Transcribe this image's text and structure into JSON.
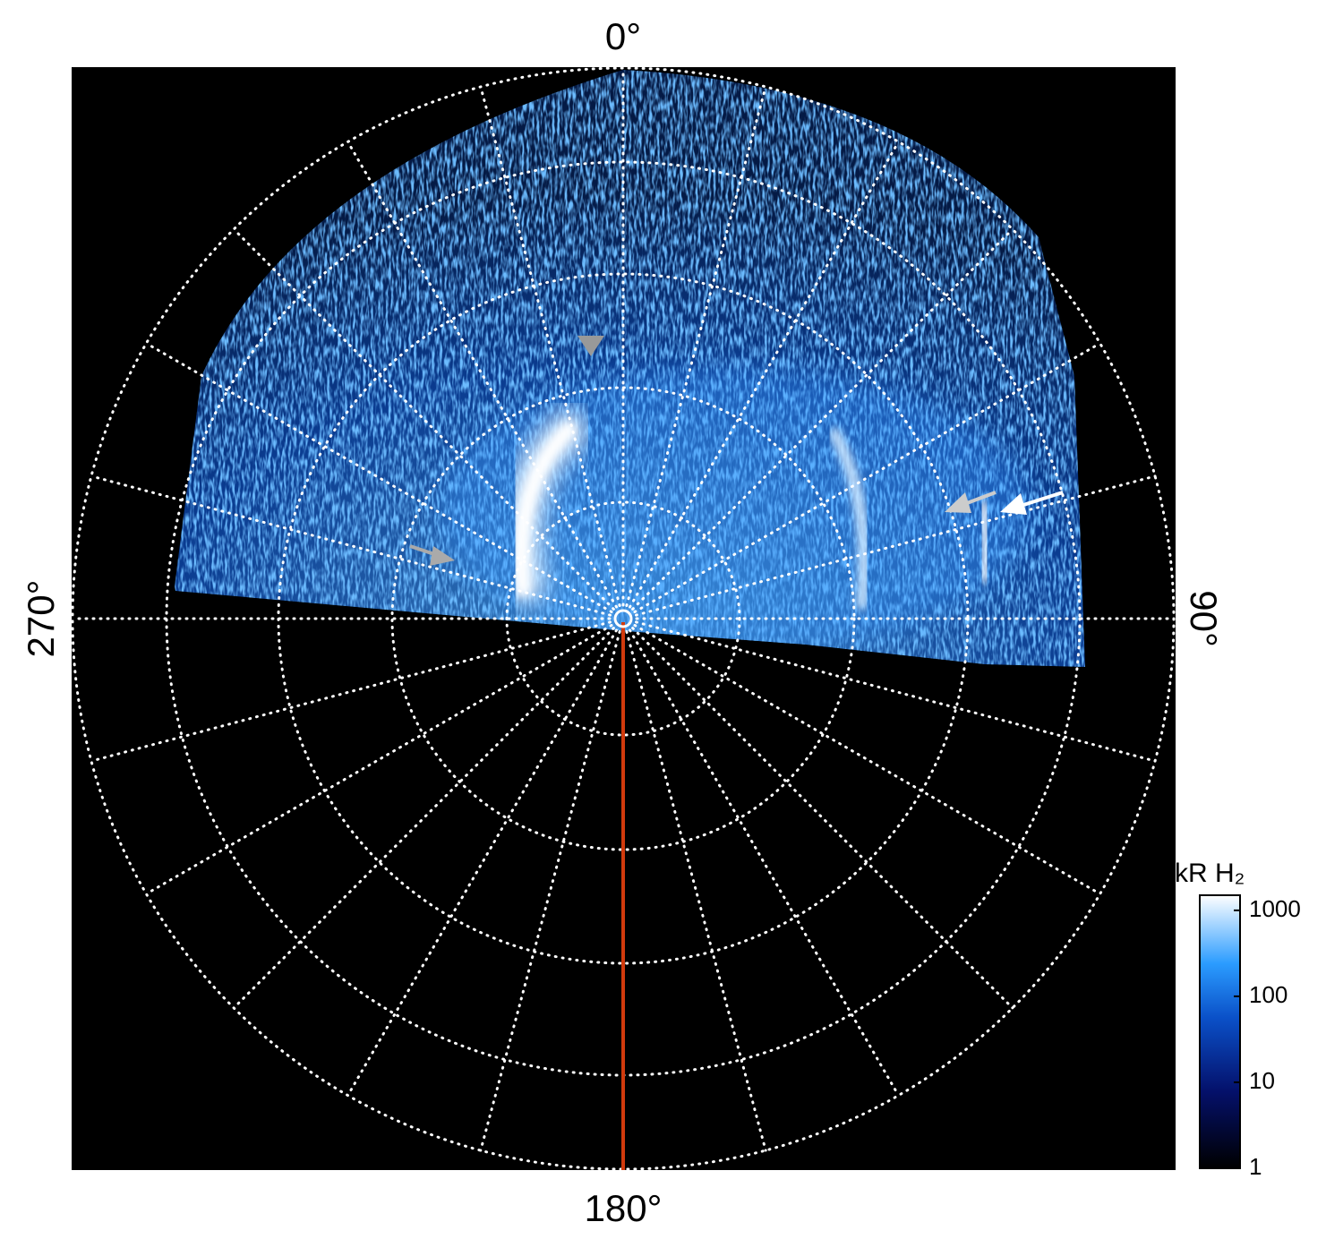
{
  "labels": {
    "top": "0°",
    "right": "90°",
    "bottom": "180°",
    "left": "270°"
  },
  "colorbar": {
    "title": "kR H₂",
    "log": true,
    "ylim": [
      1,
      1500
    ],
    "yticks": [
      1,
      10,
      100,
      1000
    ]
  }
}
